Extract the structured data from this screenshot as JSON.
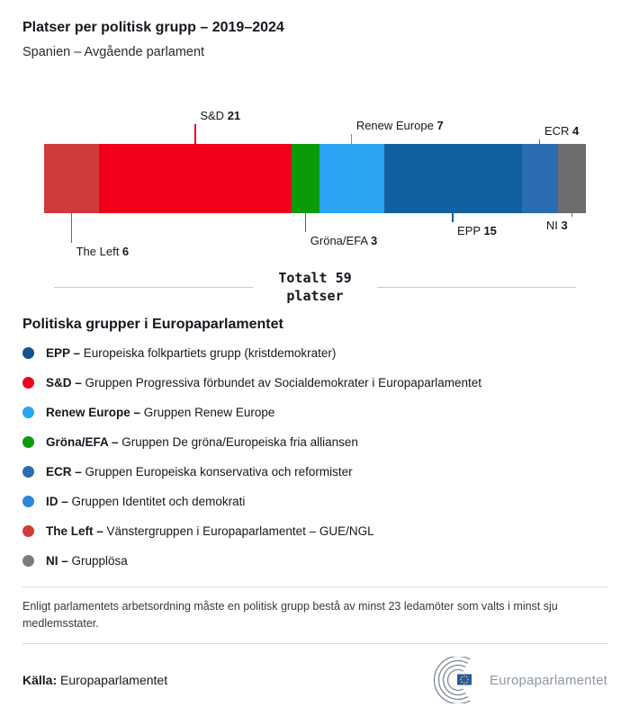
{
  "header": {
    "title": "Platser per politisk grupp – 2019–2024",
    "subtitle": "Spanien – Avgående parlament"
  },
  "chart_data": {
    "type": "bar",
    "subtype": "horizontal-stacked-single-bar",
    "title": "Platser per politisk grupp – 2019–2024",
    "subtitle": "Spanien – Avgående parlament",
    "total": 59,
    "total_text": "Totalt 59\nplatser",
    "legend_position": "below",
    "segments": [
      {
        "group": "The Left",
        "seats": 6,
        "color": "#d13a3a",
        "label_position": "below",
        "label_side": "right"
      },
      {
        "group": "S&D",
        "seats": 21,
        "color": "#f0001c",
        "label_position": "above",
        "label_side": "right"
      },
      {
        "group": "Gröna/EFA",
        "seats": 3,
        "color": "#0a9a0a",
        "label_position": "below",
        "label_side": "right"
      },
      {
        "group": "Renew Europe",
        "seats": 7,
        "color": "#29a5f2",
        "label_position": "above",
        "label_side": "right"
      },
      {
        "group": "EPP",
        "seats": 15,
        "color": "#11609f",
        "label_position": "below",
        "label_side": "right"
      },
      {
        "group": "ECR",
        "seats": 4,
        "color": "#2a6db0",
        "label_position": "above",
        "label_side": "right"
      },
      {
        "group": "NI",
        "seats": 3,
        "color": "#6d6d6d",
        "label_position": "below",
        "label_side": "left"
      }
    ]
  },
  "legend": {
    "heading": "Politiska grupper i Europaparlamentet",
    "items": [
      {
        "abbr": "EPP –",
        "desc": "Europeiska folkpartiets grupp (kristdemokrater)",
        "color": "#155292"
      },
      {
        "abbr": "S&D –",
        "desc": "Gruppen Progressiva förbundet av Socialdemokrater i Europaparlamentet",
        "color": "#f0001c"
      },
      {
        "abbr": "Renew Europe –",
        "desc": "Gruppen Renew Europe",
        "color": "#29a5f2"
      },
      {
        "abbr": "Gröna/EFA –",
        "desc": "Gruppen De gröna/Europeiska fria alliansen",
        "color": "#0a9a0a"
      },
      {
        "abbr": "ECR –",
        "desc": "Gruppen Europeiska konservativa och reformister",
        "color": "#2a6db0"
      },
      {
        "abbr": "ID –",
        "desc": "Gruppen Identitet och demokrati",
        "color": "#2d87d8"
      },
      {
        "abbr": "The Left –",
        "desc": "Vänstergruppen i Europaparlamentet – GUE/NGL",
        "color": "#d13a3a"
      },
      {
        "abbr": "NI –",
        "desc": "Grupplösa",
        "color": "#7c7c7c"
      }
    ]
  },
  "footnote": "Enligt parlamentets arbetsordning måste en politisk grupp bestå av minst 23 ledamöter som valts i minst sju medlemsstater.",
  "footer": {
    "source_label": "Källa:",
    "source_value": "Europaparlamentet",
    "brand": "Europaparlamentet"
  }
}
